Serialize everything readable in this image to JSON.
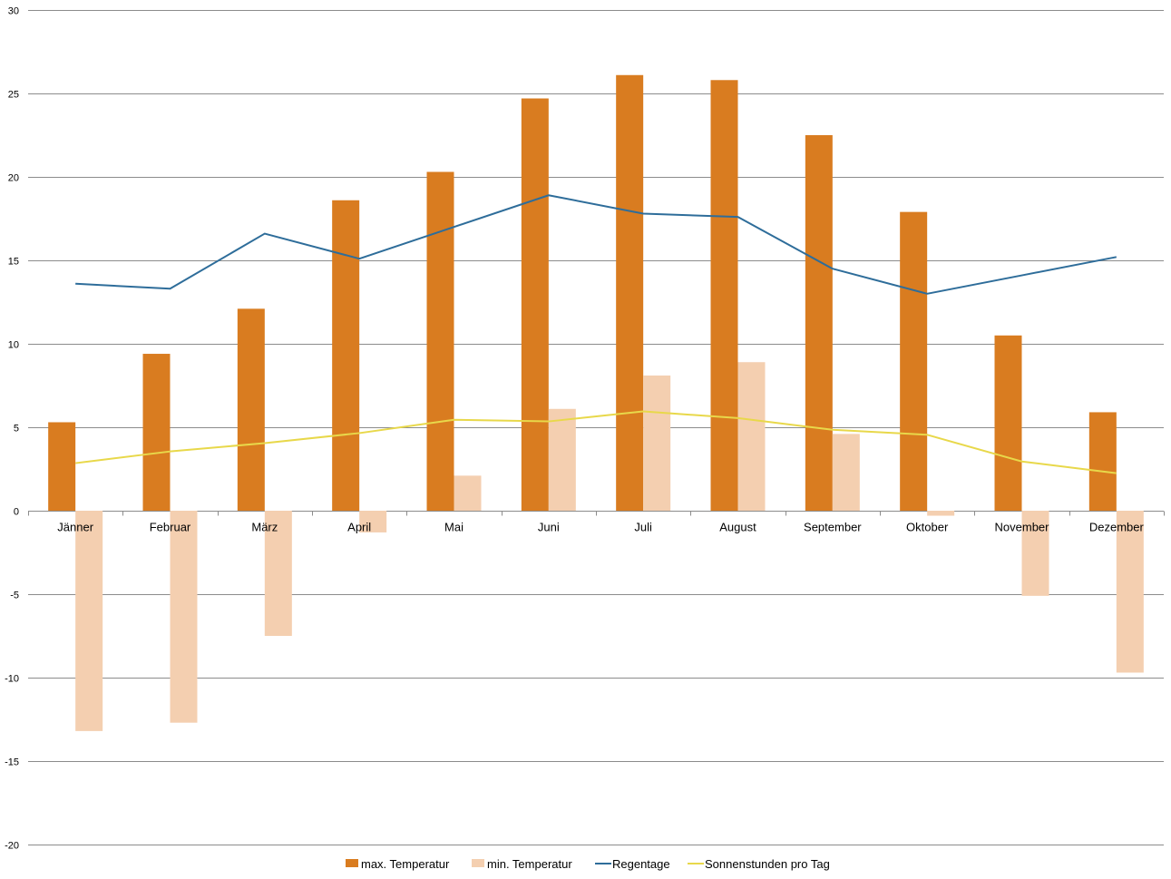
{
  "chart_data": {
    "type": "bar",
    "categories": [
      "Jänner",
      "Februar",
      "März",
      "April",
      "Mai",
      "Juni",
      "Juli",
      "August",
      "September",
      "Oktober",
      "November",
      "Dezember"
    ],
    "series": [
      {
        "name": "max. Temperatur",
        "kind": "bar",
        "color": "#d97c20",
        "values": [
          5.3,
          9.4,
          12.1,
          18.6,
          20.3,
          24.7,
          26.1,
          25.8,
          22.5,
          17.9,
          10.5,
          5.9
        ]
      },
      {
        "name": "min. Temperatur",
        "kind": "bar",
        "color": "#f4cfb0",
        "values": [
          -13.2,
          -12.7,
          -7.5,
          -1.3,
          2.1,
          6.1,
          8.1,
          8.9,
          4.6,
          -0.3,
          -5.1,
          -9.7
        ]
      },
      {
        "name": "Regentage",
        "kind": "line",
        "color": "#2e6d9a",
        "values": [
          13.6,
          13.3,
          16.6,
          15.1,
          17.0,
          18.9,
          17.8,
          17.6,
          14.5,
          13.0,
          14.1,
          15.2
        ]
      },
      {
        "name": "Sonnenstunden pro Tag",
        "kind": "line",
        "color": "#e8d84a",
        "values": [
          2.85,
          3.55,
          4.05,
          4.65,
          5.45,
          5.35,
          5.95,
          5.55,
          4.85,
          4.55,
          2.95,
          2.25
        ]
      }
    ],
    "yticks": [
      30,
      25,
      20,
      15,
      10,
      5,
      0,
      -5,
      -10,
      -15,
      -20
    ],
    "ylim": [
      -20,
      30
    ],
    "grid": true,
    "legend_position": "bottom",
    "title": "",
    "xlabel": "",
    "ylabel": ""
  }
}
